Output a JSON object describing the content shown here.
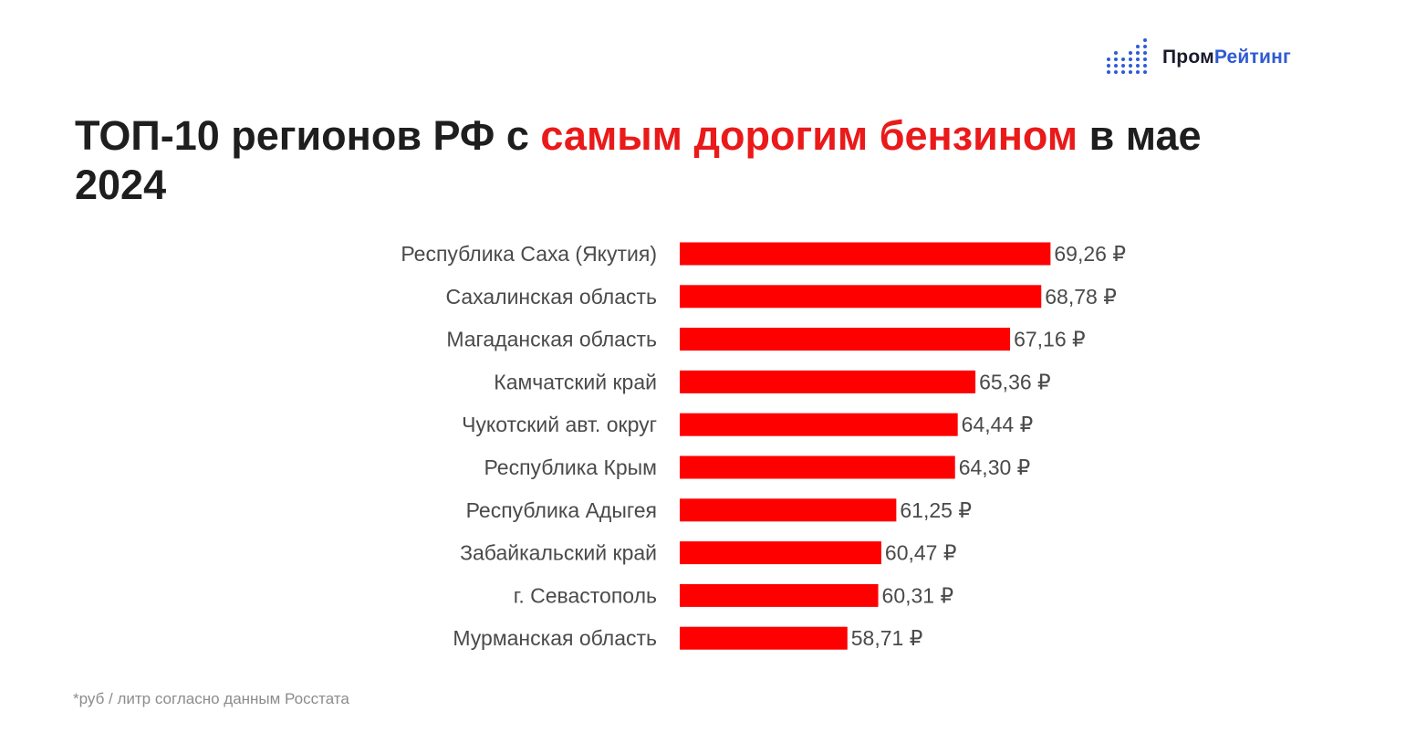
{
  "brand": {
    "part1": "Пром",
    "part2": "Рейтинг",
    "accent_color": "#2f5bd3"
  },
  "title": {
    "part1": "ТОП-10 регионов РФ с ",
    "accent": "самым дорогим бензином",
    "part2": " в мае 2024",
    "accent_color": "#ea1a1a"
  },
  "footnote": "*руб / литр согласно данным Росстата",
  "chart_data": {
    "type": "bar",
    "orientation": "horizontal",
    "title": "ТОП-10 регионов РФ с самым дорогим бензином в мае 2024",
    "categories": [
      "Республика Саха (Якутия)",
      "Сахалинская область",
      "Магаданская область",
      "Камчатский край",
      "Чукотский авт. округ",
      "Республика Крым",
      "Республика Адыгея",
      "Забайкальский край",
      "г. Севастополь",
      "Мурманская область"
    ],
    "values": [
      69.26,
      68.78,
      67.16,
      65.36,
      64.44,
      64.3,
      61.25,
      60.47,
      60.31,
      58.71
    ],
    "value_labels": [
      "69,26 ₽",
      "68,78 ₽",
      "67,16 ₽",
      "65,36 ₽",
      "64,44 ₽",
      "64,30 ₽",
      "61,25 ₽",
      "60,47 ₽",
      "60,31 ₽",
      "58,71 ₽"
    ],
    "xlim": [
      50,
      70
    ],
    "bar_color": "#ff0000",
    "grid": false,
    "legend": "none"
  }
}
